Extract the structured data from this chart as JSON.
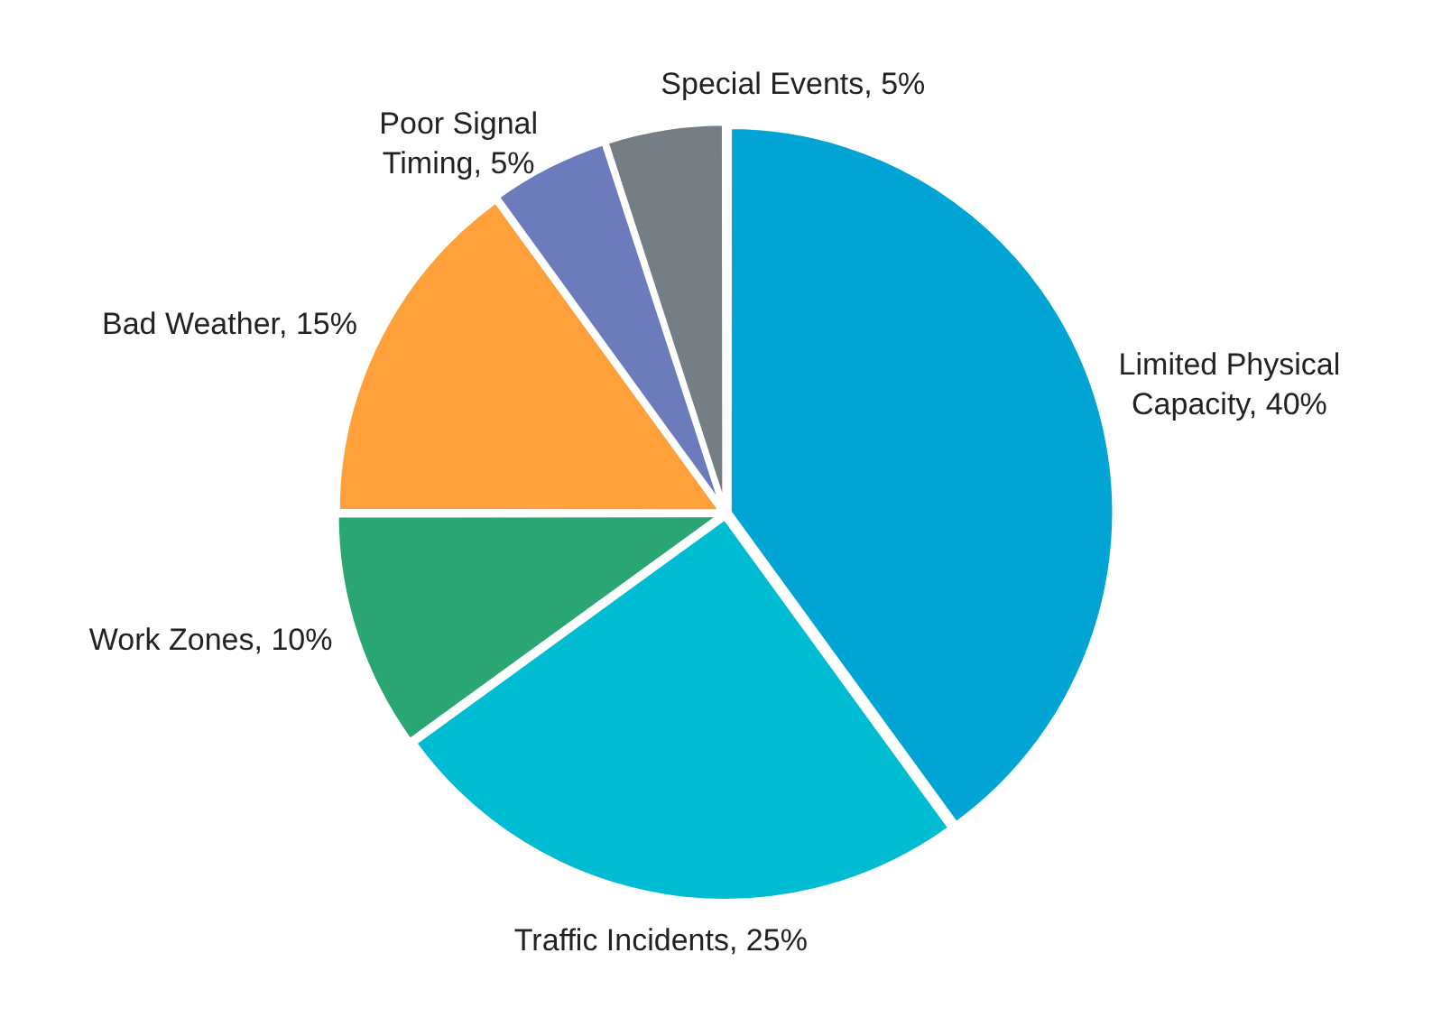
{
  "chart_data": {
    "type": "pie",
    "categories": [
      "Limited Physical Capacity",
      "Traffic Incidents",
      "Work Zones",
      "Bad Weather",
      "Poor Signal Timing",
      "Special Events"
    ],
    "values": [
      40,
      25,
      10,
      15,
      5,
      5
    ],
    "value_labels": [
      "40%",
      "25%",
      "10%",
      "15%",
      "5%",
      "5%"
    ],
    "colors": [
      "#00a5d5",
      "#00bcd3",
      "#2aa673",
      "#ffa03a",
      "#6b7bbb",
      "#757e84"
    ],
    "legend": false
  }
}
